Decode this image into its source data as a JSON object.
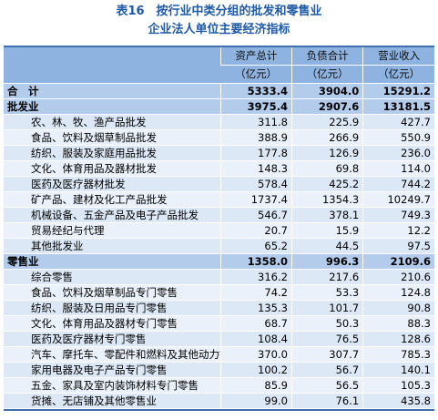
{
  "title": {
    "line1": "表16　按行业中类分组的批发和零售业",
    "line2": "企业法人单位主要经济指标"
  },
  "header": {
    "blank": "",
    "col1": [
      "资产总计",
      "（亿元）"
    ],
    "col2": [
      "负债合计",
      "（亿元）"
    ],
    "col3": [
      "营业收入",
      "（亿元）"
    ]
  },
  "rows": [
    {
      "type": "total",
      "name": "合　计",
      "assets": "5333.4",
      "liabilities": "3904.0",
      "revenue": "15291.2"
    },
    {
      "type": "section",
      "name": "批发业",
      "assets": "3975.4",
      "liabilities": "2907.6",
      "revenue": "13181.5"
    },
    {
      "type": "sub",
      "name": "农、林、牧、渔产品批发",
      "assets": "311.8",
      "liabilities": "225.9",
      "revenue": "427.7"
    },
    {
      "type": "sub",
      "name": "食品、饮料及烟草制品批发",
      "assets": "388.9",
      "liabilities": "266.9",
      "revenue": "550.9"
    },
    {
      "type": "sub",
      "name": "纺织、服装及家庭用品批发",
      "assets": "177.8",
      "liabilities": "126.9",
      "revenue": "236.0"
    },
    {
      "type": "sub",
      "name": "文化、体育用品及器材批发",
      "assets": "148.3",
      "liabilities": "69.8",
      "revenue": "114.0"
    },
    {
      "type": "sub",
      "name": "医药及医疗器材批发",
      "assets": "578.4",
      "liabilities": "425.2",
      "revenue": "744.2"
    },
    {
      "type": "sub",
      "name": "矿产品、建材及化工产品批发",
      "assets": "1737.4",
      "liabilities": "1354.3",
      "revenue": "10249.7"
    },
    {
      "type": "sub",
      "name": "机械设备、五金产品及电子产品批发",
      "assets": "546.7",
      "liabilities": "378.1",
      "revenue": "749.3"
    },
    {
      "type": "sub",
      "name": "贸易经纪与代理",
      "assets": "20.7",
      "liabilities": "15.9",
      "revenue": "12.2"
    },
    {
      "type": "sub",
      "name": "其他批发业",
      "assets": "65.2",
      "liabilities": "44.5",
      "revenue": "97.5"
    },
    {
      "type": "section",
      "name": "零售业",
      "assets": "1358.0",
      "liabilities": "996.3",
      "revenue": "2109.6"
    },
    {
      "type": "sub",
      "name": "综合零售",
      "assets": "316.2",
      "liabilities": "217.6",
      "revenue": "210.6"
    },
    {
      "type": "sub",
      "name": "食品、饮料及烟草制品专门零售",
      "assets": "74.2",
      "liabilities": "53.3",
      "revenue": "124.8"
    },
    {
      "type": "sub",
      "name": "纺织、服装及日用品专门零售",
      "assets": "135.3",
      "liabilities": "101.7",
      "revenue": "90.8"
    },
    {
      "type": "sub",
      "name": "文化、体育用品及器材专门零售",
      "assets": "68.7",
      "liabilities": "50.3",
      "revenue": "88.3"
    },
    {
      "type": "sub",
      "name": "医药及医疗器材专门零售",
      "assets": "108.4",
      "liabilities": "76.5",
      "revenue": "128.6"
    },
    {
      "type": "sub",
      "name": "汽车、摩托车、零配件和燃料及其他动力销售",
      "assets": "370.0",
      "liabilities": "307.7",
      "revenue": "785.3"
    },
    {
      "type": "sub",
      "name": "家用电器及电子产品专门零售",
      "assets": "100.2",
      "liabilities": "56.7",
      "revenue": "140.1"
    },
    {
      "type": "sub",
      "name": "五金、家具及室内装饰材料专门零售",
      "assets": "85.9",
      "liabilities": "56.5",
      "revenue": "105.3"
    },
    {
      "type": "sub",
      "name": "货摊、无店铺及其他零售业",
      "assets": "99.0",
      "liabilities": "76.1",
      "revenue": "435.8"
    }
  ]
}
